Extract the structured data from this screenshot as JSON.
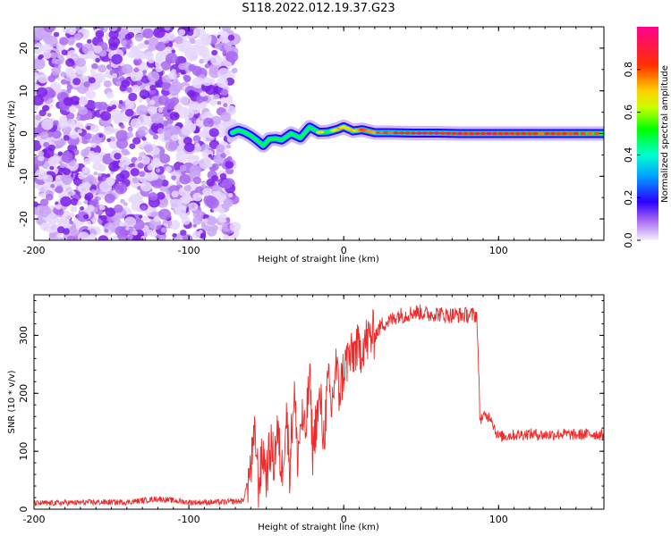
{
  "title": "S118.2022.012.19.37.G23",
  "chart_data": [
    {
      "type": "heatmap",
      "xlabel": "Height of straight line (km)",
      "ylabel": "Frequency (Hz)",
      "xlim": [
        -200,
        168
      ],
      "ylim": [
        -25,
        25
      ],
      "x_ticks": [
        -200,
        -100,
        0,
        100
      ],
      "y_ticks": [
        -20,
        -10,
        0,
        10,
        20
      ],
      "noise_region": {
        "x_from": -200,
        "x_to": -70,
        "y_from": -25,
        "y_to": 25,
        "typical_amplitude": 0.2
      },
      "signal_track": [
        {
          "x": -72,
          "y": 0.2,
          "amp": 0.5
        },
        {
          "x": -68,
          "y": 0.8,
          "amp": 0.5
        },
        {
          "x": -64,
          "y": 0.3,
          "amp": 0.45
        },
        {
          "x": -60,
          "y": -0.5,
          "amp": 0.45
        },
        {
          "x": -56,
          "y": -1.6,
          "amp": 0.4
        },
        {
          "x": -52,
          "y": -2.8,
          "amp": 0.4
        },
        {
          "x": -48,
          "y": -1.3,
          "amp": 0.45
        },
        {
          "x": -44,
          "y": -1.2,
          "amp": 0.45
        },
        {
          "x": -40,
          "y": -1.5,
          "amp": 0.5
        },
        {
          "x": -34,
          "y": 0.0,
          "amp": 0.5
        },
        {
          "x": -28,
          "y": -1.0,
          "amp": 0.5
        },
        {
          "x": -22,
          "y": 1.5,
          "amp": 0.55
        },
        {
          "x": -16,
          "y": 0.3,
          "amp": 0.6
        },
        {
          "x": -10,
          "y": 0.4,
          "amp": 0.6
        },
        {
          "x": -4,
          "y": 1.0,
          "amp": 0.65
        },
        {
          "x": 0,
          "y": 1.6,
          "amp": 0.7
        },
        {
          "x": 6,
          "y": 0.6,
          "amp": 0.7
        },
        {
          "x": 12,
          "y": 0.9,
          "amp": 0.75
        },
        {
          "x": 20,
          "y": 0.2,
          "amp": 0.8
        },
        {
          "x": 30,
          "y": 0.2,
          "amp": 0.85
        },
        {
          "x": 45,
          "y": 0.1,
          "amp": 0.9
        },
        {
          "x": 60,
          "y": 0.1,
          "amp": 0.9
        },
        {
          "x": 75,
          "y": 0.0,
          "amp": 0.9
        },
        {
          "x": 90,
          "y": 0.0,
          "amp": 0.9
        },
        {
          "x": 105,
          "y": 0.0,
          "amp": 0.85
        },
        {
          "x": 120,
          "y": 0.0,
          "amp": 0.85
        },
        {
          "x": 135,
          "y": 0.0,
          "amp": 0.8
        },
        {
          "x": 150,
          "y": 0.0,
          "amp": 0.8
        },
        {
          "x": 168,
          "y": 0.0,
          "amp": 0.8
        }
      ],
      "colorbar": {
        "label": "Normalized spectral amplitude",
        "range": [
          0,
          1
        ],
        "ticks": [
          0.0,
          0.2,
          0.4,
          0.6,
          0.8
        ]
      }
    },
    {
      "type": "line",
      "xlabel": "Height of straight line (km)",
      "ylabel": "SNR (10 * v/v)",
      "xlim": [
        -200,
        168
      ],
      "ylim": [
        0,
        370
      ],
      "x_ticks": [
        -200,
        -100,
        0,
        100
      ],
      "y_ticks": [
        0,
        100,
        200,
        300
      ],
      "series": [
        {
          "color": "#ee2a2a",
          "x": [
            -200,
            -180,
            -160,
            -140,
            -120,
            -100,
            -80,
            -65,
            -60,
            -57,
            -55,
            -52,
            -50,
            -47,
            -45,
            -43,
            -40,
            -37,
            -35,
            -32,
            -30,
            -27,
            -25,
            -22,
            -20,
            -18,
            -15,
            -13,
            -10,
            -8,
            -5,
            -3,
            0,
            3,
            5,
            8,
            10,
            13,
            15,
            18,
            20,
            25,
            30,
            35,
            40,
            45,
            50,
            55,
            60,
            65,
            70,
            75,
            80,
            86,
            88,
            90,
            95,
            98,
            100,
            110,
            120,
            130,
            140,
            150,
            160,
            168
          ],
          "values": [
            10,
            11,
            12,
            12,
            18,
            12,
            12,
            14,
            70,
            130,
            40,
            100,
            60,
            110,
            80,
            140,
            60,
            170,
            70,
            210,
            90,
            160,
            120,
            230,
            100,
            150,
            190,
            120,
            220,
            170,
            250,
            200,
            240,
            265,
            260,
            280,
            270,
            290,
            290,
            300,
            300,
            320,
            325,
            335,
            335,
            340,
            340,
            336,
            338,
            335,
            335,
            335,
            335,
            335,
            155,
            160,
            160,
            135,
            125,
            128,
            130,
            128,
            130,
            128,
            130,
            128
          ]
        }
      ]
    }
  ]
}
